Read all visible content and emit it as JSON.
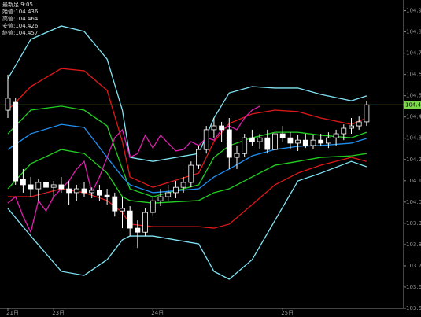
{
  "chart_data": {
    "type": "candlestick",
    "info_title": "最新足 9:05",
    "info": [
      "始値:104.436",
      "高値:104.464",
      "安値:104.426",
      "終値:104.457"
    ],
    "categories": [
      "21日",
      null,
      null,
      null,
      null,
      null,
      "23日",
      null,
      null,
      null,
      null,
      null,
      null,
      null,
      null,
      null,
      null,
      null,
      null,
      "24日",
      null,
      null,
      null,
      null,
      null,
      null,
      null,
      null,
      null,
      null,
      null,
      null,
      null,
      null,
      null,
      null,
      "25日",
      null,
      null,
      null,
      null,
      null,
      null,
      null,
      null,
      null,
      null,
      null
    ],
    "open": [
      104.432,
      104.469,
      104.106,
      104.081,
      104.062,
      104.092,
      104.069,
      104.081,
      104.062,
      104.044,
      104.062,
      104.044,
      104.055,
      104.032,
      104.025,
      103.958,
      103.958,
      103.877,
      103.858,
      103.951,
      104.006,
      104.025,
      104.044,
      104.069,
      104.092,
      104.173,
      104.247,
      104.34,
      104.358,
      104.34,
      104.21,
      104.228,
      104.302,
      104.284,
      104.302,
      104.247,
      104.321,
      104.302,
      104.277,
      104.291,
      104.266,
      104.291,
      104.277,
      104.302,
      104.321,
      104.347,
      104.358,
      104.377
    ],
    "high": [
      104.599,
      104.488,
      104.155,
      104.118,
      104.106,
      104.118,
      104.099,
      104.118,
      104.099,
      104.081,
      104.092,
      104.069,
      104.081,
      104.062,
      104.044,
      104.025,
      103.981,
      103.914,
      103.97,
      104.025,
      104.062,
      104.081,
      104.099,
      104.118,
      104.191,
      104.266,
      104.358,
      104.395,
      104.377,
      104.395,
      104.266,
      104.321,
      104.34,
      104.321,
      104.34,
      104.34,
      104.358,
      104.328,
      104.314,
      104.321,
      104.314,
      104.321,
      104.328,
      104.34,
      104.365,
      104.395,
      104.402,
      104.476
    ],
    "low": [
      104.395,
      104.081,
      104.044,
      104.025,
      104.006,
      104.032,
      104.025,
      104.044,
      103.988,
      104.006,
      104.025,
      104.018,
      104.006,
      103.988,
      103.932,
      103.877,
      103.84,
      103.784,
      103.84,
      103.932,
      103.981,
      104.006,
      104.018,
      104.044,
      104.069,
      104.155,
      104.228,
      104.302,
      104.284,
      104.155,
      104.155,
      104.21,
      104.266,
      104.247,
      104.228,
      104.228,
      104.284,
      104.247,
      104.24,
      104.254,
      104.247,
      104.262,
      104.254,
      104.266,
      104.291,
      104.321,
      104.34,
      104.358
    ],
    "close": [
      104.488,
      104.099,
      104.081,
      104.062,
      104.092,
      104.069,
      104.081,
      104.062,
      104.044,
      104.062,
      104.044,
      104.055,
      104.032,
      104.025,
      103.958,
      103.97,
      103.877,
      103.858,
      103.951,
      104.006,
      104.025,
      104.044,
      104.069,
      104.092,
      104.173,
      104.247,
      104.34,
      104.358,
      104.34,
      104.21,
      104.228,
      104.302,
      104.284,
      104.302,
      104.247,
      104.321,
      104.302,
      104.277,
      104.291,
      104.266,
      104.291,
      104.277,
      104.302,
      104.321,
      104.347,
      104.358,
      104.377,
      104.457
    ],
    "up_color": "#000000",
    "down_color": "#ffffff",
    "lines": [
      {
        "color": "#80e4f4",
        "x": [
          0,
          3,
          7,
          10,
          13,
          15,
          16,
          19,
          25,
          27,
          29,
          32,
          35,
          38,
          41,
          45,
          47
        ],
        "values": [
          104.58,
          104.765,
          104.828,
          104.802,
          104.672,
          104.432,
          104.21,
          104.191,
          104.228,
          104.395,
          104.513,
          104.543,
          104.536,
          104.536,
          104.506,
          104.476,
          104.499
        ]
      },
      {
        "color": "#e01818",
        "x": [
          0,
          3,
          7,
          10,
          13,
          15,
          16,
          19,
          25,
          27,
          29,
          32,
          35,
          38,
          41,
          45,
          47
        ],
        "values": [
          104.432,
          104.543,
          104.628,
          104.617,
          104.525,
          104.284,
          104.118,
          104.069,
          104.136,
          104.284,
          104.369,
          104.414,
          104.432,
          104.425,
          104.395,
          104.365,
          104.395
        ]
      },
      {
        "color": "#22d022",
        "x": [
          0,
          3,
          7,
          10,
          13,
          15,
          16,
          19,
          25,
          27,
          29,
          32,
          35,
          38,
          41,
          45,
          47
        ],
        "values": [
          104.321,
          104.432,
          104.451,
          104.432,
          104.358,
          104.155,
          104.062,
          104.025,
          104.081,
          104.21,
          104.265,
          104.302,
          104.328,
          104.328,
          104.314,
          104.302,
          104.328
        ]
      },
      {
        "color": "#2090f0",
        "x": [
          0,
          3,
          7,
          10,
          13,
          15,
          16,
          19,
          25,
          27,
          29,
          32,
          35,
          38,
          41,
          45,
          47
        ],
        "values": [
          104.247,
          104.321,
          104.365,
          104.351,
          104.21,
          104.118,
          104.081,
          104.044,
          104.062,
          104.118,
          104.155,
          104.217,
          104.247,
          104.262,
          104.266,
          104.277,
          104.299
        ]
      },
      {
        "color": "#22d022",
        "x": [
          0,
          3,
          7,
          10,
          13,
          15,
          16,
          19,
          25,
          27,
          29,
          32,
          35,
          38,
          41,
          45,
          47
        ],
        "values": [
          104.062,
          104.18,
          104.247,
          104.228,
          104.136,
          104.025,
          104.007,
          103.995,
          104.007,
          104.044,
          104.062,
          104.118,
          104.173,
          104.191,
          104.21,
          104.217,
          104.228
        ]
      },
      {
        "color": "#e01818",
        "x": [
          0,
          3,
          7,
          10,
          13,
          15,
          16,
          19,
          25,
          27,
          29,
          32,
          35,
          38,
          41,
          45,
          47
        ],
        "values": [
          104.025,
          104.025,
          104.062,
          104.044,
          104.007,
          103.951,
          103.896,
          103.884,
          103.884,
          103.877,
          103.896,
          103.988,
          104.081,
          104.136,
          104.173,
          104.21,
          104.191
        ]
      },
      {
        "color": "#80e4f4",
        "x": [
          0,
          3,
          7,
          10,
          13,
          15,
          16,
          19,
          25,
          27,
          29,
          32,
          35,
          38,
          41,
          45,
          47
        ],
        "values": [
          103.97,
          103.84,
          103.674,
          103.655,
          103.729,
          103.822,
          103.84,
          103.84,
          103.803,
          103.674,
          103.637,
          103.729,
          103.914,
          104.099,
          104.136,
          104.191,
          104.166
        ]
      },
      {
        "color": "#e020b0",
        "x": [
          0,
          1,
          2,
          3,
          4,
          5,
          6,
          7,
          8,
          9,
          10,
          11,
          12,
          13,
          14,
          15,
          16,
          17,
          18,
          19,
          20,
          21,
          22,
          23,
          24,
          25,
          26,
          27,
          28,
          29,
          30,
          31,
          32,
          33
        ],
        "values": [
          103.995,
          104.025,
          103.932,
          103.858,
          104.006,
          103.958,
          104.025,
          104.062,
          104.099,
          104.155,
          104.191,
          104.044,
          104.118,
          104.21,
          104.302,
          104.34,
          104.21,
          104.228,
          104.314,
          104.254,
          104.314,
          104.277,
          104.24,
          104.247,
          104.284,
          104.266,
          104.302,
          104.291,
          104.34,
          104.358,
          104.34,
          104.395,
          104.432,
          104.451
        ]
      }
    ],
    "last_price": 104.457,
    "last_price_color": "#7cd84c",
    "ylim": [
      103.5,
      104.95
    ],
    "yticks": [
      {
        "value": 103.5,
        "label": "103.500"
      },
      {
        "value": 103.6,
        "label": "103.600"
      },
      {
        "value": 103.7,
        "label": "103.700"
      },
      {
        "value": 103.8,
        "label": "103.800"
      },
      {
        "value": 103.9,
        "label": "103.900"
      },
      {
        "value": 104.0,
        "label": "104.000"
      },
      {
        "value": 104.1,
        "label": "104.100"
      },
      {
        "value": 104.2,
        "label": "104.200"
      },
      {
        "value": 104.3,
        "label": "104.300"
      },
      {
        "value": 104.4,
        "label": "104.400"
      },
      {
        "value": 104.5,
        "label": "104.500"
      },
      {
        "value": 104.6,
        "label": "104.600"
      },
      {
        "value": 104.7,
        "label": "104.700"
      },
      {
        "value": 104.8,
        "label": "104.800"
      },
      {
        "value": 104.9,
        "label": "104.900"
      }
    ]
  }
}
